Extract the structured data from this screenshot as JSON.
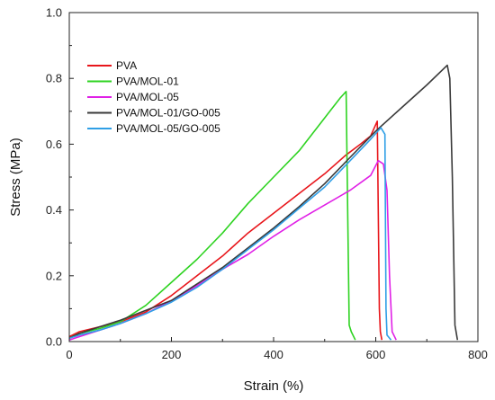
{
  "chart_data": {
    "type": "line",
    "title": "",
    "xlabel": "Strain (%)",
    "ylabel": "Stress (MPa)",
    "xlim": [
      0,
      800
    ],
    "ylim": [
      0,
      1.0
    ],
    "xticks": [
      0,
      200,
      400,
      600,
      800
    ],
    "xtick_labels": [
      "0",
      "200",
      "400",
      "600",
      "800"
    ],
    "yticks": [
      0.0,
      0.2,
      0.4,
      0.6,
      0.8,
      1.0
    ],
    "ytick_labels": [
      "0.0",
      "0.2",
      "0.4",
      "0.6",
      "0.8",
      "1.0"
    ],
    "grid": false,
    "legend_position": "upper-left",
    "series": [
      {
        "name": "PVA",
        "color": "#e8161b",
        "x": [
          0,
          20,
          60,
          100,
          150,
          200,
          250,
          300,
          350,
          400,
          450,
          500,
          540,
          570,
          590,
          603,
          607,
          609,
          612
        ],
        "y": [
          0.015,
          0.03,
          0.045,
          0.06,
          0.09,
          0.14,
          0.2,
          0.26,
          0.33,
          0.39,
          0.45,
          0.51,
          0.565,
          0.6,
          0.625,
          0.67,
          0.1,
          0.03,
          0.005
        ]
      },
      {
        "name": "PVA/MOL-01",
        "color": "#2ed321",
        "x": [
          0,
          20,
          60,
          100,
          150,
          200,
          250,
          300,
          350,
          400,
          450,
          500,
          530,
          542,
          545,
          548,
          552,
          560
        ],
        "y": [
          0.01,
          0.025,
          0.04,
          0.06,
          0.11,
          0.18,
          0.25,
          0.33,
          0.42,
          0.5,
          0.58,
          0.68,
          0.74,
          0.76,
          0.4,
          0.05,
          0.03,
          0.005
        ]
      },
      {
        "name": "PVA/MOL-05",
        "color": "#e020e6",
        "x": [
          0,
          20,
          60,
          100,
          150,
          200,
          250,
          300,
          350,
          400,
          450,
          500,
          550,
          590,
          605,
          615,
          622,
          627,
          632,
          640
        ],
        "y": [
          0.005,
          0.015,
          0.035,
          0.055,
          0.085,
          0.125,
          0.17,
          0.22,
          0.265,
          0.32,
          0.37,
          0.415,
          0.46,
          0.505,
          0.55,
          0.54,
          0.46,
          0.2,
          0.03,
          0.005
        ]
      },
      {
        "name": "PVA/MOL-01/GO-005",
        "color": "#3a3a3a",
        "x": [
          0,
          20,
          60,
          100,
          150,
          200,
          250,
          300,
          350,
          400,
          450,
          500,
          550,
          600,
          650,
          700,
          740,
          745,
          750,
          755,
          760
        ],
        "y": [
          0.01,
          0.025,
          0.045,
          0.065,
          0.095,
          0.125,
          0.175,
          0.225,
          0.285,
          0.345,
          0.41,
          0.48,
          0.56,
          0.64,
          0.71,
          0.78,
          0.84,
          0.8,
          0.5,
          0.05,
          0.005
        ]
      },
      {
        "name": "PVA/MOL-05/GO-005",
        "color": "#2f9fe6",
        "x": [
          0,
          20,
          60,
          100,
          150,
          200,
          250,
          300,
          350,
          400,
          450,
          500,
          550,
          590,
          610,
          618,
          620,
          622,
          630
        ],
        "y": [
          0.01,
          0.02,
          0.035,
          0.055,
          0.085,
          0.12,
          0.165,
          0.22,
          0.28,
          0.34,
          0.405,
          0.47,
          0.55,
          0.615,
          0.65,
          0.63,
          0.1,
          0.02,
          0.005
        ]
      }
    ]
  }
}
